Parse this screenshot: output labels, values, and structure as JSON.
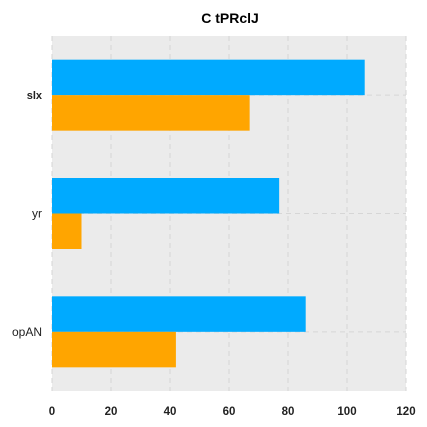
{
  "chart_data": {
    "type": "bar",
    "orientation": "horizontal",
    "title": "C tPRclJ",
    "xlabel": "",
    "ylabel": "",
    "categories": [
      "slx",
      "yr",
      "opAN"
    ],
    "category_bold": [
      true,
      false,
      false
    ],
    "series": [
      {
        "values": [
          106,
          77,
          86
        ],
        "color": "#00aaff"
      },
      {
        "values": [
          67,
          10,
          42
        ],
        "color": "#ffa500"
      }
    ],
    "xlim": [
      0,
      120
    ],
    "xticks": [
      0,
      20,
      40,
      60,
      80,
      100,
      120
    ],
    "grid": true,
    "grid_style": "dashed",
    "plot_background": "#ebebeb",
    "legend": "none"
  }
}
